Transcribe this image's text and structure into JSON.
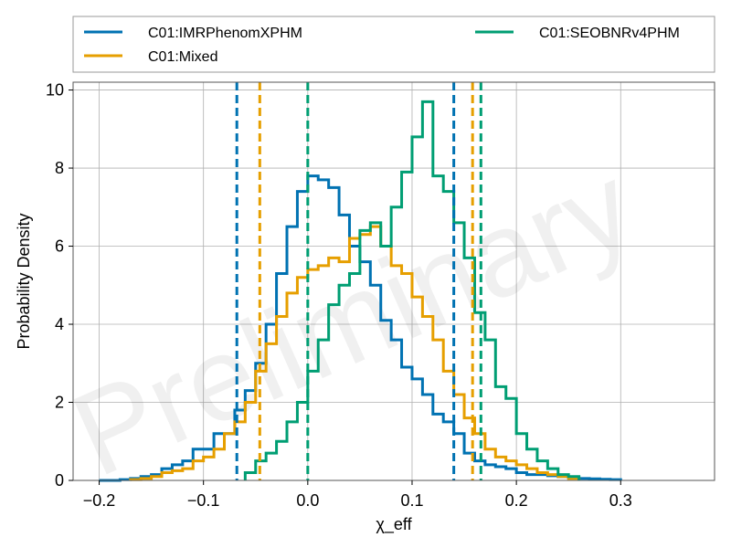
{
  "chart_data": {
    "type": "histogram",
    "xlabel": "χ_eff",
    "ylabel": "Probability Density",
    "xlim": [
      -0.225,
      0.39
    ],
    "ylim": [
      0,
      10.2
    ],
    "xticks": [
      -0.2,
      -0.1,
      0.0,
      0.1,
      0.2,
      0.3
    ],
    "xtick_labels": [
      "−0.2",
      "−0.1",
      "0.0",
      "0.1",
      "0.2",
      "0.3"
    ],
    "yticks": [
      0,
      2,
      4,
      6,
      8,
      10
    ],
    "ytick_labels": [
      "0",
      "2",
      "4",
      "6",
      "8",
      "10"
    ],
    "grid": true,
    "legend_placement": "top, above plot",
    "watermark": "Preliminary",
    "series": [
      {
        "name": "C01:IMRPhenomXPHM",
        "color": "#0072B2",
        "edges": [
          -0.2,
          -0.19,
          -0.18,
          -0.17,
          -0.16,
          -0.15,
          -0.14,
          -0.13,
          -0.12,
          -0.11,
          -0.1,
          -0.09,
          -0.08,
          -0.07,
          -0.06,
          -0.05,
          -0.04,
          -0.03,
          -0.02,
          -0.01,
          0.0,
          0.01,
          0.02,
          0.03,
          0.04,
          0.05,
          0.06,
          0.07,
          0.08,
          0.09,
          0.1,
          0.11,
          0.12,
          0.13,
          0.14,
          0.15,
          0.16,
          0.17,
          0.18,
          0.19,
          0.2,
          0.21,
          0.22,
          0.23,
          0.24,
          0.25,
          0.26,
          0.27,
          0.28,
          0.29,
          0.3
        ],
        "density": [
          0.0,
          0.0,
          0.02,
          0.05,
          0.1,
          0.15,
          0.3,
          0.4,
          0.5,
          0.8,
          0.8,
          1.2,
          1.2,
          1.8,
          2.3,
          3.0,
          4.0,
          5.3,
          6.5,
          7.4,
          7.8,
          7.7,
          7.5,
          6.8,
          6.0,
          5.6,
          5.0,
          4.1,
          3.6,
          2.9,
          2.6,
          2.2,
          1.7,
          1.5,
          1.2,
          0.7,
          0.5,
          0.4,
          0.35,
          0.3,
          0.2,
          0.15,
          0.15,
          0.12,
          0.1,
          0.08,
          0.05,
          0.04,
          0.03,
          0.02
        ],
        "ci90": [
          -0.068,
          0.14
        ]
      },
      {
        "name": "C01:Mixed",
        "color": "#E69F00",
        "edges": [
          -0.17,
          -0.16,
          -0.15,
          -0.14,
          -0.13,
          -0.12,
          -0.11,
          -0.1,
          -0.09,
          -0.08,
          -0.07,
          -0.06,
          -0.05,
          -0.04,
          -0.03,
          -0.02,
          -0.01,
          0.0,
          0.01,
          0.02,
          0.03,
          0.04,
          0.05,
          0.06,
          0.07,
          0.08,
          0.09,
          0.1,
          0.11,
          0.12,
          0.13,
          0.14,
          0.15,
          0.16,
          0.17,
          0.18,
          0.19,
          0.2,
          0.21,
          0.22,
          0.23,
          0.24,
          0.25,
          0.26
        ],
        "density": [
          0.02,
          0.05,
          0.1,
          0.2,
          0.25,
          0.3,
          0.5,
          0.6,
          0.8,
          1.2,
          1.5,
          2.0,
          2.8,
          3.5,
          4.2,
          4.8,
          5.2,
          5.4,
          5.5,
          5.7,
          5.6,
          6.2,
          6.3,
          6.5,
          6.0,
          5.5,
          5.3,
          4.7,
          4.2,
          3.6,
          2.8,
          2.2,
          1.6,
          1.2,
          0.8,
          0.6,
          0.5,
          0.4,
          0.3,
          0.2,
          0.15,
          0.1,
          0.05
        ],
        "ci90": [
          -0.046,
          0.158
        ]
      },
      {
        "name": "C01:SEOBNRv4PHM",
        "color": "#009E73",
        "edges": [
          -0.06,
          -0.05,
          -0.04,
          -0.03,
          -0.02,
          -0.01,
          0.0,
          0.01,
          0.02,
          0.03,
          0.04,
          0.05,
          0.06,
          0.07,
          0.08,
          0.09,
          0.1,
          0.11,
          0.12,
          0.13,
          0.14,
          0.15,
          0.16,
          0.17,
          0.18,
          0.19,
          0.2,
          0.21,
          0.22,
          0.23,
          0.24,
          0.25,
          0.26
        ],
        "density": [
          0.2,
          0.5,
          0.7,
          1.0,
          1.5,
          2.0,
          2.8,
          3.6,
          4.5,
          5.0,
          5.3,
          6.4,
          6.6,
          6.0,
          7.0,
          7.9,
          8.8,
          9.7,
          7.8,
          7.4,
          6.6,
          5.7,
          4.3,
          3.6,
          2.4,
          2.1,
          1.2,
          0.8,
          0.5,
          0.3,
          0.15,
          0.1
        ],
        "ci90": [
          0.0,
          0.166
        ]
      }
    ]
  }
}
